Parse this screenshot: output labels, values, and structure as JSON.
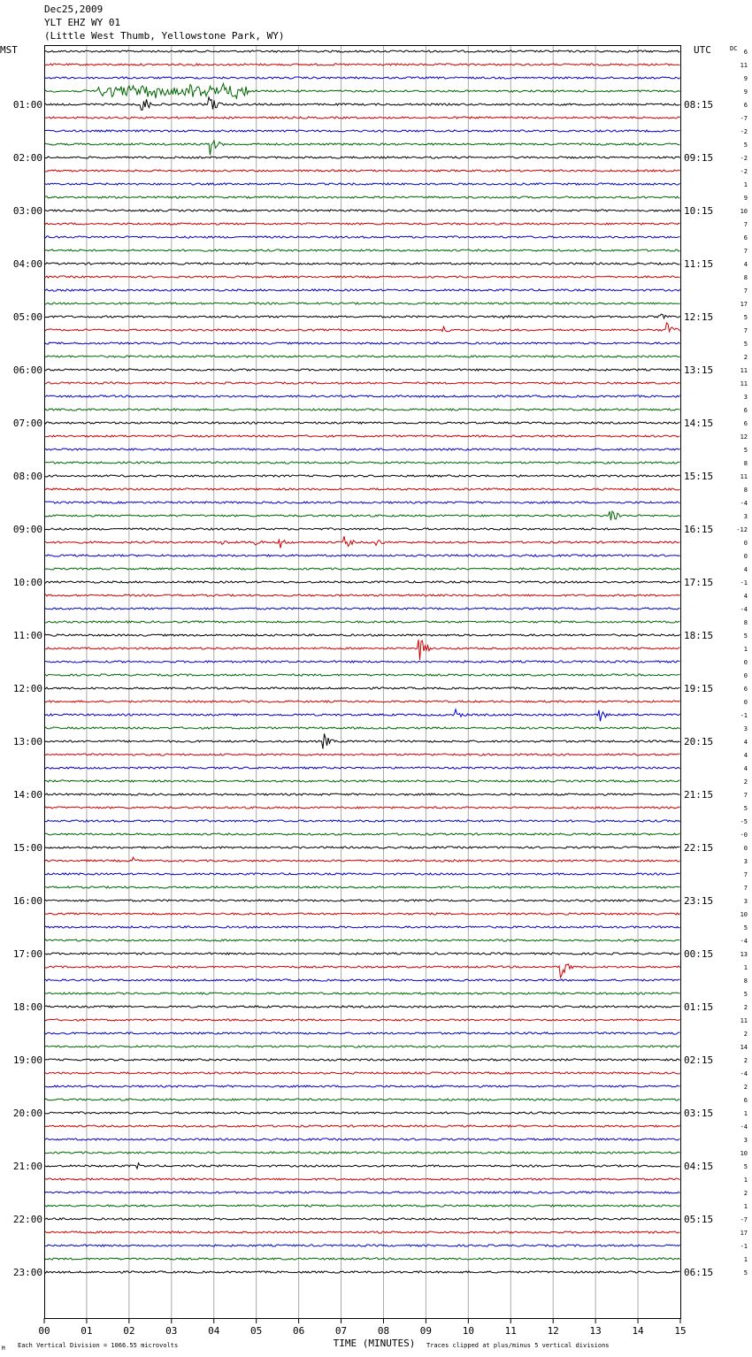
{
  "header": {
    "date": "Dec25,2009",
    "station": "YLT EHZ WY 01",
    "location": "(Little West Thumb, Yellowstone Park, WY)"
  },
  "footer": {
    "scale_note": "Each Vertical Division = 1066.55 microvolts",
    "clip_note": "Traces clipped at plus/minus 5 vertical divisions",
    "corner_mark": "M"
  },
  "colors": {
    "trace_cycle": [
      "#000000",
      "#cc0000",
      "#0000cc",
      "#006600"
    ],
    "grid": "#aaaaaa"
  },
  "chart_data": {
    "type": "line",
    "title": "",
    "xlabel": "TIME (MINUTES)",
    "left_axis_title": "MST",
    "right_axis_title": "UTC",
    "dc_title": "DC",
    "xlim": [
      0,
      15
    ],
    "x_ticks": [
      "00",
      "01",
      "02",
      "03",
      "04",
      "05",
      "06",
      "07",
      "08",
      "09",
      "10",
      "11",
      "12",
      "13",
      "14",
      "15"
    ],
    "grid": true,
    "traces_per_hour": 4,
    "mst_labels": [
      "01:00",
      "02:00",
      "03:00",
      "04:00",
      "05:00",
      "06:00",
      "07:00",
      "08:00",
      "09:00",
      "10:00",
      "11:00",
      "12:00",
      "13:00",
      "14:00",
      "15:00",
      "16:00",
      "17:00",
      "18:00",
      "19:00",
      "20:00",
      "21:00",
      "22:00",
      "23:00"
    ],
    "utc_labels": [
      "08:15",
      "09:15",
      "10:15",
      "11:15",
      "12:15",
      "13:15",
      "14:15",
      "15:15",
      "16:15",
      "17:15",
      "18:15",
      "19:15",
      "20:15",
      "21:15",
      "22:15",
      "23:15",
      "00:15",
      "01:15",
      "02:15",
      "03:15",
      "04:15",
      "05:15",
      "06:15"
    ],
    "dc_offsets": [
      "6",
      "11",
      "9",
      "9",
      "6",
      "-7",
      "-2",
      "5",
      "-2",
      "-2",
      "1",
      "9",
      "10",
      "7",
      "6",
      "7",
      "4",
      "8",
      "7",
      "17",
      "5",
      "7",
      "5",
      "2",
      "11",
      "11",
      "3",
      "6",
      "6",
      "12",
      "5",
      "8",
      "11",
      "8",
      "-4",
      "3",
      "-12",
      "0",
      "0",
      "4",
      "-1",
      "4",
      "-4",
      "8",
      "5",
      "1",
      "0",
      "0",
      "6",
      "0",
      "-1",
      "3",
      "4",
      "4",
      "4",
      "2",
      "7",
      "5",
      "-5",
      "-0",
      "0",
      "3",
      "7",
      "7",
      "3",
      "10",
      "5",
      "-4",
      "13",
      "1",
      "8",
      "5",
      "2",
      "11",
      "2",
      "14",
      "2",
      "-4",
      "2",
      "6",
      "1",
      "-4",
      "3",
      "10",
      "5",
      "1",
      "2",
      "1",
      "-7",
      "17",
      "-1",
      "1",
      "5"
    ],
    "events": [
      {
        "trace": 3,
        "minute": 1.2,
        "end_minute": 4.8,
        "amp": 14,
        "kind": "noise"
      },
      {
        "trace": 4,
        "minute": 2.3,
        "amp": 14
      },
      {
        "trace": 4,
        "minute": 3.9,
        "amp": 14
      },
      {
        "trace": 7,
        "minute": 3.9,
        "amp": 14
      },
      {
        "trace": 20,
        "minute": 10.8,
        "amp": 4
      },
      {
        "trace": 20,
        "minute": 14.5,
        "amp": 5
      },
      {
        "trace": 21,
        "minute": 9.4,
        "amp": 5
      },
      {
        "trace": 21,
        "minute": 14.7,
        "amp": 10
      },
      {
        "trace": 35,
        "minute": 13.35,
        "amp": 14
      },
      {
        "trace": 37,
        "minute": 4.2,
        "amp": 5
      },
      {
        "trace": 37,
        "minute": 4.95,
        "amp": 6
      },
      {
        "trace": 37,
        "minute": 5.55,
        "amp": 8
      },
      {
        "trace": 37,
        "minute": 7.1,
        "amp": 8
      },
      {
        "trace": 37,
        "minute": 7.85,
        "amp": 5
      },
      {
        "trace": 45,
        "minute": 8.85,
        "amp": 14
      },
      {
        "trace": 50,
        "minute": 9.7,
        "amp": 7
      },
      {
        "trace": 50,
        "minute": 13.1,
        "amp": 8
      },
      {
        "trace": 52,
        "minute": 6.6,
        "amp": 9
      },
      {
        "trace": 61,
        "minute": 2.1,
        "amp": 4
      },
      {
        "trace": 69,
        "minute": 12.2,
        "amp": 14
      },
      {
        "trace": 84,
        "minute": 2.2,
        "amp": 4
      }
    ]
  }
}
